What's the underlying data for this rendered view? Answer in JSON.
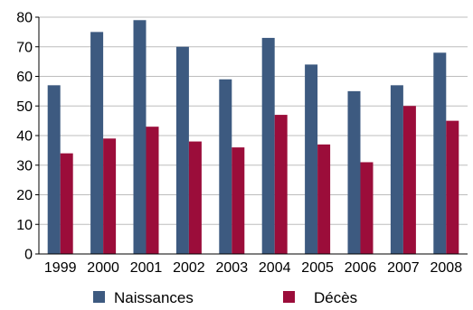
{
  "chart_data": {
    "type": "bar",
    "title": "",
    "xlabel": "",
    "ylabel": "",
    "categories": [
      "1999",
      "2000",
      "2001",
      "2002",
      "2003",
      "2004",
      "2005",
      "2006",
      "2007",
      "2008"
    ],
    "series": [
      {
        "name": "Naissances",
        "color": "#3d5a80",
        "values": [
          57,
          75,
          79,
          70,
          59,
          73,
          64,
          55,
          57,
          68
        ]
      },
      {
        "name": "Décès",
        "color": "#9b0d3a",
        "values": [
          34,
          39,
          43,
          38,
          36,
          47,
          37,
          31,
          50,
          45
        ]
      }
    ],
    "ylim": [
      0,
      80
    ],
    "yticks": [
      "0",
      "10",
      "20",
      "30",
      "40",
      "50",
      "60",
      "70",
      "80"
    ],
    "grid": true,
    "legend_position": "bottom"
  }
}
